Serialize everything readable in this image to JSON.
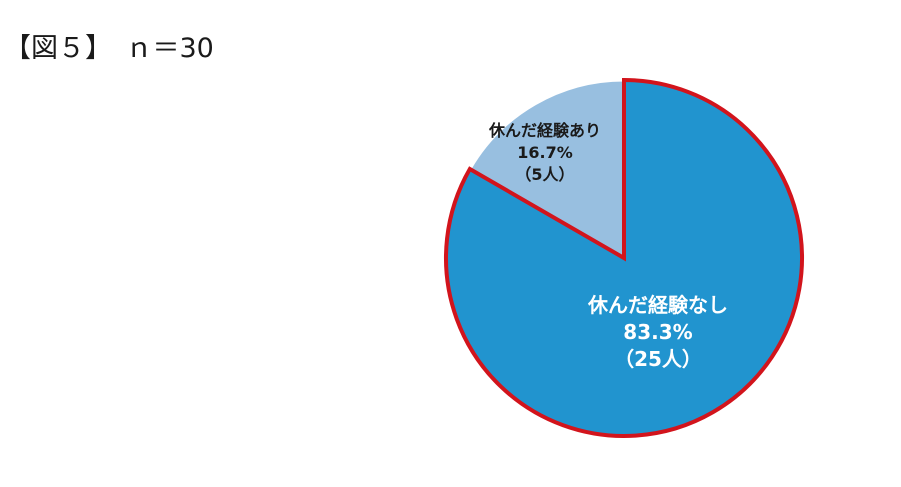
{
  "chart_data": {
    "type": "pie",
    "title": "【図５】　ｎ＝30",
    "slices": [
      {
        "label": "休んだ経験なし",
        "percent_label": "83.3%",
        "count_label": "（25人）",
        "value": 25,
        "color": "#2194cf",
        "text_color": "#ffffff"
      },
      {
        "label": "休んだ経験あり",
        "percent_label": "16.7%",
        "count_label": "（5人）",
        "value": 5,
        "color": "#98bfe0",
        "text_color": "#1a1a1a"
      }
    ],
    "start_angle_deg": 0,
    "direction": "clockwise",
    "highlight_border_color": "#d2141c",
    "separator_color": "#ffffff",
    "legend": "none"
  }
}
